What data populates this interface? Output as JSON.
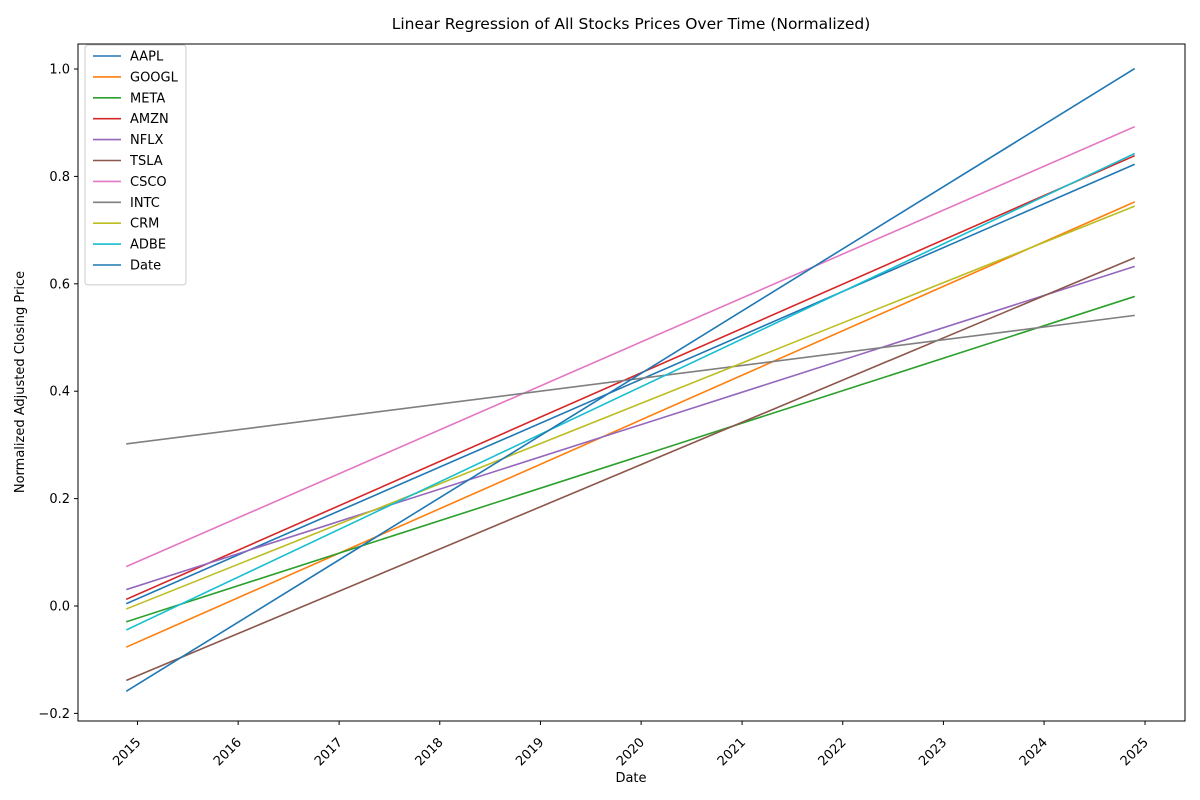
{
  "chart_data": {
    "type": "line",
    "title": "Linear Regression of All Stocks Prices Over Time (Normalized)",
    "xlabel": "Date",
    "ylabel": "Normalized Adjusted Closing Price",
    "x_ticks": [
      "2015",
      "2016",
      "2017",
      "2018",
      "2019",
      "2020",
      "2021",
      "2022",
      "2023",
      "2024",
      "2025"
    ],
    "y_ticks": [
      "−0.2",
      "0.0",
      "0.2",
      "0.4",
      "0.6",
      "0.8",
      "1.0"
    ],
    "x_range": [
      "2014-11-24",
      "2024-11-22"
    ],
    "ylim": [
      -0.2,
      1.0
    ],
    "grid": false,
    "legend_position": "upper left",
    "series": [
      {
        "name": "AAPL",
        "color": "#1f77b4",
        "values": [
          0.005,
          0.822
        ]
      },
      {
        "name": "GOOGL",
        "color": "#ff7f0e",
        "values": [
          -0.076,
          0.752
        ]
      },
      {
        "name": "META",
        "color": "#2ca02c",
        "values": [
          -0.029,
          0.576
        ]
      },
      {
        "name": "AMZN",
        "color": "#d62728",
        "values": [
          0.013,
          0.838
        ]
      },
      {
        "name": "NFLX",
        "color": "#9467bd",
        "values": [
          0.031,
          0.632
        ]
      },
      {
        "name": "TSLA",
        "color": "#8c564b",
        "values": [
          -0.138,
          0.648
        ]
      },
      {
        "name": "CSCO",
        "color": "#e377c2",
        "values": [
          0.074,
          0.892
        ]
      },
      {
        "name": "INTC",
        "color": "#7f7f7f",
        "values": [
          0.302,
          0.541
        ]
      },
      {
        "name": "CRM",
        "color": "#bcbd22",
        "values": [
          -0.005,
          0.744
        ]
      },
      {
        "name": "ADBE",
        "color": "#17becf",
        "values": [
          -0.044,
          0.842
        ]
      },
      {
        "name": "Date",
        "color": "#1f77b4",
        "values": [
          -0.158,
          1.0
        ]
      }
    ]
  }
}
